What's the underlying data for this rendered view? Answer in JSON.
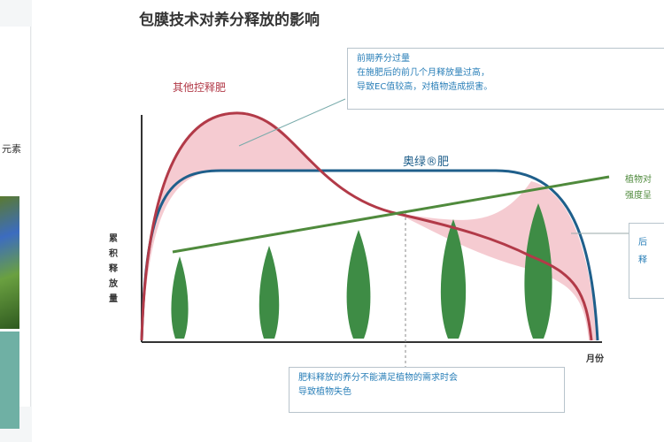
{
  "title": "包膜技术对养分释放的影响",
  "left_fragment": "元素",
  "labels": {
    "other_cr": "其他控释肥",
    "aolv": "奥绿®肥",
    "y_axis": "累积释放量",
    "x_axis": "月份",
    "plant_demand_1": "植物对",
    "plant_demand_2": "强度呈"
  },
  "callouts": {
    "top": [
      "前期养分过量",
      "在施肥后的前几个月释放量过高，",
      "导致EC值较高，对植物造成损害。"
    ],
    "bottom": [
      "肥料释放的养分不能满足植物的需求时会",
      "导致植物失色"
    ],
    "right": [
      "后",
      "释"
    ]
  },
  "colors": {
    "red_curve": "#b23a48",
    "blue_curve": "#1f5f8b",
    "green_line": "#4f8a3c",
    "tree": "#3e8c45",
    "fill": "#f0b8bf"
  }
}
